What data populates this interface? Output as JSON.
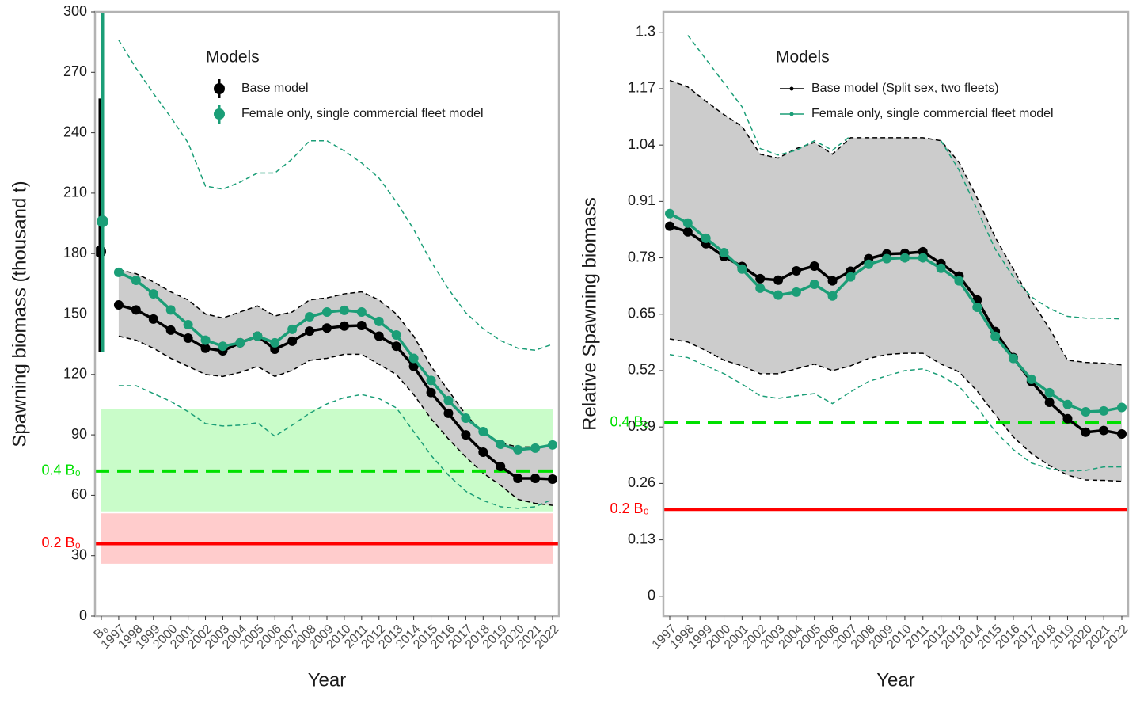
{
  "chart_data": [
    {
      "type": "line",
      "x_label": "Year",
      "y_label": "Spawning biomass (thousand t)",
      "legend_title": "Models",
      "legend_style": "point-errorbar",
      "categories": [
        "B₀",
        "1997",
        "1998",
        "1999",
        "2000",
        "2001",
        "2002",
        "2003",
        "2004",
        "2005",
        "2006",
        "2007",
        "2008",
        "2009",
        "2010",
        "2011",
        "2012",
        "2013",
        "2014",
        "2015",
        "2016",
        "2017",
        "2018",
        "2019",
        "2020",
        "2021",
        "2022"
      ],
      "ylim": [
        0,
        300
      ],
      "yticks": [
        0,
        30,
        60,
        90,
        120,
        150,
        180,
        210,
        240,
        270,
        300
      ],
      "shaded_ranges": [
        {
          "lower": 52,
          "upper": 103,
          "color": "#c9fcc9"
        },
        {
          "lower": 26,
          "upper": 51,
          "color": "#ffcccc"
        }
      ],
      "reference_lines": [
        {
          "label": "0.4 B₀",
          "value": 72,
          "color": "#00e000",
          "dashed": true
        },
        {
          "label": "0.2 B₀",
          "value": 36,
          "color": "#ff0000",
          "dashed": false
        }
      ],
      "series": [
        {
          "name": "Base model",
          "color": "#000000",
          "band_fill": "#cccccc",
          "b0": 181,
          "b0_interval": [
            131,
            257
          ],
          "values": [
            null,
            154.5,
            152,
            147.5,
            142,
            138,
            133,
            131.7,
            135.7,
            139,
            132.5,
            136.5,
            141.5,
            143,
            144,
            144.3,
            139,
            134,
            124,
            111,
            100.7,
            90,
            81.4,
            74.3,
            68.4,
            68.4,
            68
          ],
          "lower": [
            null,
            139,
            137,
            133,
            128,
            124,
            120,
            119,
            121,
            124,
            119,
            122,
            127,
            128,
            130,
            130,
            125,
            120,
            110,
            98,
            88,
            79,
            71,
            65,
            58,
            56,
            55
          ],
          "upper": [
            null,
            172,
            170,
            166,
            161,
            157,
            150,
            148,
            151,
            154,
            149,
            151,
            157,
            158,
            160,
            161,
            157,
            150,
            139,
            124,
            112,
            100,
            91,
            86,
            84,
            84,
            84
          ]
        },
        {
          "name": "Female only, single commercial fleet model",
          "color": "#1b9e77",
          "b0": 196,
          "b0_interval": [
            131,
            300
          ],
          "values": [
            null,
            170.7,
            166.7,
            160,
            152,
            144.7,
            137,
            134,
            135.7,
            139,
            135.7,
            142.4,
            148.6,
            151,
            151.8,
            151,
            146.3,
            139.6,
            128,
            117,
            107,
            98.3,
            91.6,
            85.3,
            82.6,
            83.4,
            85
          ],
          "lower": [
            null,
            114.4,
            114.4,
            110.5,
            106.6,
            101.5,
            95.6,
            94.4,
            94.8,
            96,
            89.3,
            94.8,
            100.7,
            105.4,
            108.5,
            110,
            108,
            103.4,
            91.6,
            79.8,
            70,
            62,
            57.4,
            54.3,
            53.5,
            54.3,
            58
          ],
          "upper": [
            null,
            286,
            272,
            259.5,
            247.7,
            235,
            213.5,
            212,
            215.5,
            220,
            220,
            227,
            236,
            236,
            231,
            225,
            217.5,
            205.7,
            192,
            176,
            162.4,
            150.6,
            142.7,
            136.8,
            133,
            132,
            135
          ]
        }
      ]
    },
    {
      "type": "line",
      "x_label": "Year",
      "y_label": "Relative Spawning biomass",
      "legend_title": "Models",
      "legend_style": "line-point",
      "categories": [
        "1997",
        "1998",
        "1999",
        "2000",
        "2001",
        "2002",
        "2003",
        "2004",
        "2005",
        "2006",
        "2007",
        "2008",
        "2009",
        "2010",
        "2011",
        "2012",
        "2013",
        "2014",
        "2015",
        "2016",
        "2017",
        "2018",
        "2019",
        "2020",
        "2021",
        "2022"
      ],
      "ylim": [
        -0.046,
        1.347
      ],
      "yticks": [
        0,
        0.13,
        0.26,
        0.39,
        0.52,
        0.65,
        0.78,
        0.91,
        1.04,
        1.17,
        1.3
      ],
      "reference_lines": [
        {
          "label": "0.4 B₀",
          "value": 0.4,
          "color": "#00e000",
          "dashed": true
        },
        {
          "label": "0.2 B₀",
          "value": 0.2,
          "color": "#ff0000",
          "dashed": false
        }
      ],
      "series": [
        {
          "name": "Base model (Split sex, two fleets)",
          "color": "#000000",
          "band_fill": "#cccccc",
          "values": [
            0.853,
            0.84,
            0.8125,
            0.783,
            0.76,
            0.732,
            0.7285,
            0.75,
            0.761,
            0.727,
            0.749,
            0.778,
            0.789,
            0.7905,
            0.794,
            0.767,
            0.738,
            0.683,
            0.61,
            0.55,
            0.495,
            0.447,
            0.409,
            0.378,
            0.382,
            0.374
          ],
          "lower": [
            0.593,
            0.586,
            0.566,
            0.544,
            0.531,
            0.513,
            0.513,
            0.524,
            0.535,
            0.52,
            0.531,
            0.548,
            0.557,
            0.56,
            0.56,
            0.535,
            0.517,
            0.473,
            0.418,
            0.367,
            0.329,
            0.301,
            0.279,
            0.268,
            0.267,
            0.265
          ],
          "upper": [
            1.189,
            1.174,
            1.141,
            1.11,
            1.083,
            1.019,
            1.01,
            1.032,
            1.046,
            1.019,
            1.057,
            1.057,
            1.057,
            1.057,
            1.057,
            1.05,
            1.0,
            0.918,
            0.827,
            0.754,
            0.681,
            0.617,
            0.544,
            0.539,
            0.537,
            0.533
          ]
        },
        {
          "name": "Female only, single commercial fleet model",
          "color": "#1b9e77",
          "values": [
            0.882,
            0.86,
            0.825,
            0.792,
            0.754,
            0.71,
            0.694,
            0.701,
            0.719,
            0.692,
            0.736,
            0.765,
            0.778,
            0.78,
            0.78,
            0.756,
            0.727,
            0.666,
            0.599,
            0.548,
            0.5,
            0.469,
            0.442,
            0.425,
            0.427,
            0.435
          ],
          "lower": [
            0.557,
            0.55,
            0.531,
            0.513,
            0.489,
            0.462,
            0.456,
            0.462,
            0.467,
            0.444,
            0.471,
            0.495,
            0.508,
            0.52,
            0.524,
            0.508,
            0.484,
            0.435,
            0.38,
            0.338,
            0.307,
            0.294,
            0.288,
            0.29,
            0.298,
            0.298
          ],
          "upper": [
            null,
            1.293,
            1.238,
            1.183,
            1.128,
            1.032,
            1.017,
            1.028,
            1.05,
            1.028,
            1.061,
            null,
            null,
            null,
            null,
            1.05,
            0.982,
            0.891,
            0.8,
            0.736,
            0.69,
            0.663,
            0.645,
            0.641,
            0.641,
            0.639
          ]
        }
      ]
    }
  ]
}
